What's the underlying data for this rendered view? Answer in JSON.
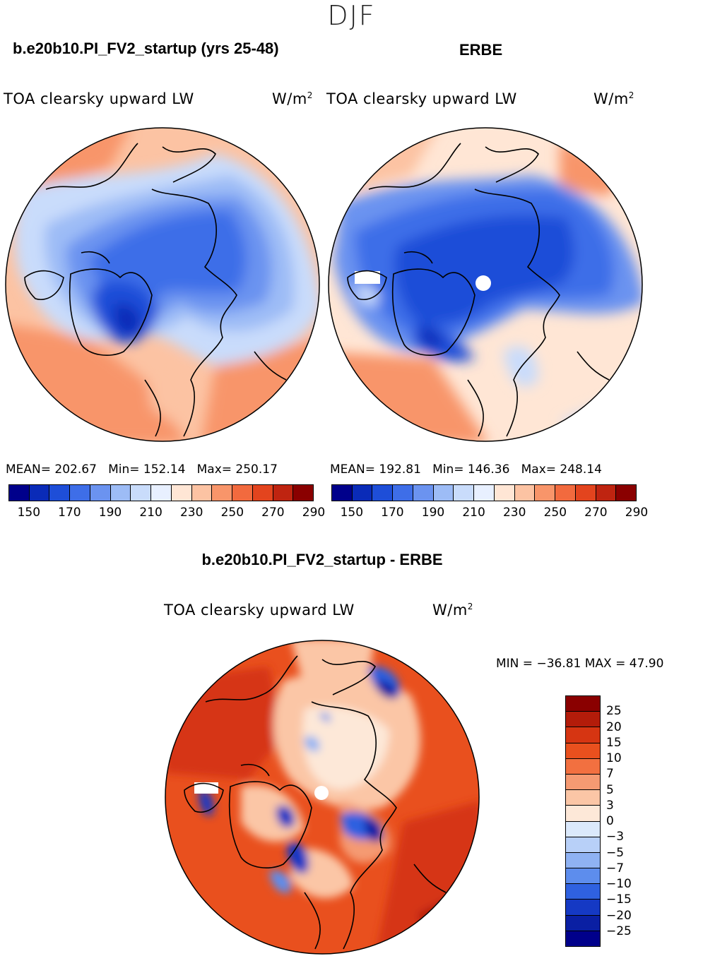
{
  "header": {
    "season": "DJF",
    "left_case": "b.e20b10.PI_FV2_startup (yrs 25-48)",
    "right_case": "ERBE",
    "diff_case": "b.e20b10.PI_FV2_startup - ERBE"
  },
  "panels": {
    "model": {
      "variable": "TOA clearsky upward LW",
      "units": "W/m",
      "units_sup": "2",
      "mean_text": "MEAN= 202.67",
      "min_text": "Min= 152.14",
      "max_text": "Max= 250.17"
    },
    "obs": {
      "variable": "TOA clearsky upward LW",
      "units": "W/m",
      "units_sup": "2",
      "mean_text": "MEAN= 192.81",
      "min_text": "Min= 146.36",
      "max_text": "Max= 248.14"
    },
    "diff": {
      "variable": "TOA clearsky upward LW",
      "units": "W/m",
      "units_sup": "2",
      "minmax_text": "MIN = −36.81 MAX =  47.90"
    }
  },
  "chart_data": [
    {
      "type": "heatmap",
      "name": "model",
      "title": "b.e20b10.PI_FV2_startup (yrs 25-48)",
      "variable": "TOA clearsky upward LW",
      "units": "W/m2",
      "projection": "polar stereographic (Northern Hemisphere)",
      "mean": 202.67,
      "min": 152.14,
      "max": 250.17,
      "colorbar_ticks": [
        "150",
        "170",
        "190",
        "210",
        "230",
        "250",
        "270",
        "290"
      ],
      "colorbar_colors": [
        "#00008b",
        "#0a2bb8",
        "#1e4ed8",
        "#3e6ee8",
        "#6b93f0",
        "#9dbcf6",
        "#c9dcfb",
        "#e8f0ff",
        "#ffe6d5",
        "#fcc3a3",
        "#f8956a",
        "#f26a3e",
        "#e3441e",
        "#bf2410",
        "#8a0000"
      ]
    },
    {
      "type": "heatmap",
      "name": "obs",
      "title": "ERBE",
      "variable": "TOA clearsky upward LW",
      "units": "W/m2",
      "projection": "polar stereographic (Northern Hemisphere)",
      "mean": 192.81,
      "min": 146.36,
      "max": 248.14,
      "colorbar_ticks": [
        "150",
        "170",
        "190",
        "210",
        "230",
        "250",
        "270",
        "290"
      ],
      "colorbar_colors": [
        "#00008b",
        "#0a2bb8",
        "#1e4ed8",
        "#3e6ee8",
        "#6b93f0",
        "#9dbcf6",
        "#c9dcfb",
        "#e8f0ff",
        "#ffe6d5",
        "#fcc3a3",
        "#f8956a",
        "#f26a3e",
        "#e3441e",
        "#bf2410",
        "#8a0000"
      ]
    },
    {
      "type": "heatmap",
      "name": "difference",
      "title": "b.e20b10.PI_FV2_startup - ERBE",
      "variable": "TOA clearsky upward LW",
      "units": "W/m2",
      "projection": "polar stereographic (Northern Hemisphere)",
      "min": -36.81,
      "max": 47.9,
      "colorbar_ticks": [
        "25",
        "20",
        "15",
        "10",
        "7",
        "5",
        "3",
        "0",
        "−3",
        "−5",
        "−7",
        "−10",
        "−15",
        "−20",
        "−25"
      ],
      "colorbar_colors": [
        "#8a0000",
        "#b31c0a",
        "#d63512",
        "#e9501e",
        "#f27040",
        "#f59a72",
        "#fbc6a6",
        "#fde8d8",
        "#dbe9fb",
        "#b8d0f8",
        "#8fb2f3",
        "#5d8ded",
        "#2f61e0",
        "#1539c4",
        "#0a1fa3",
        "#00008b"
      ]
    }
  ],
  "colors": {
    "ocean_blue": "#1e4ed8",
    "warm_orange": "#f26a3e"
  }
}
